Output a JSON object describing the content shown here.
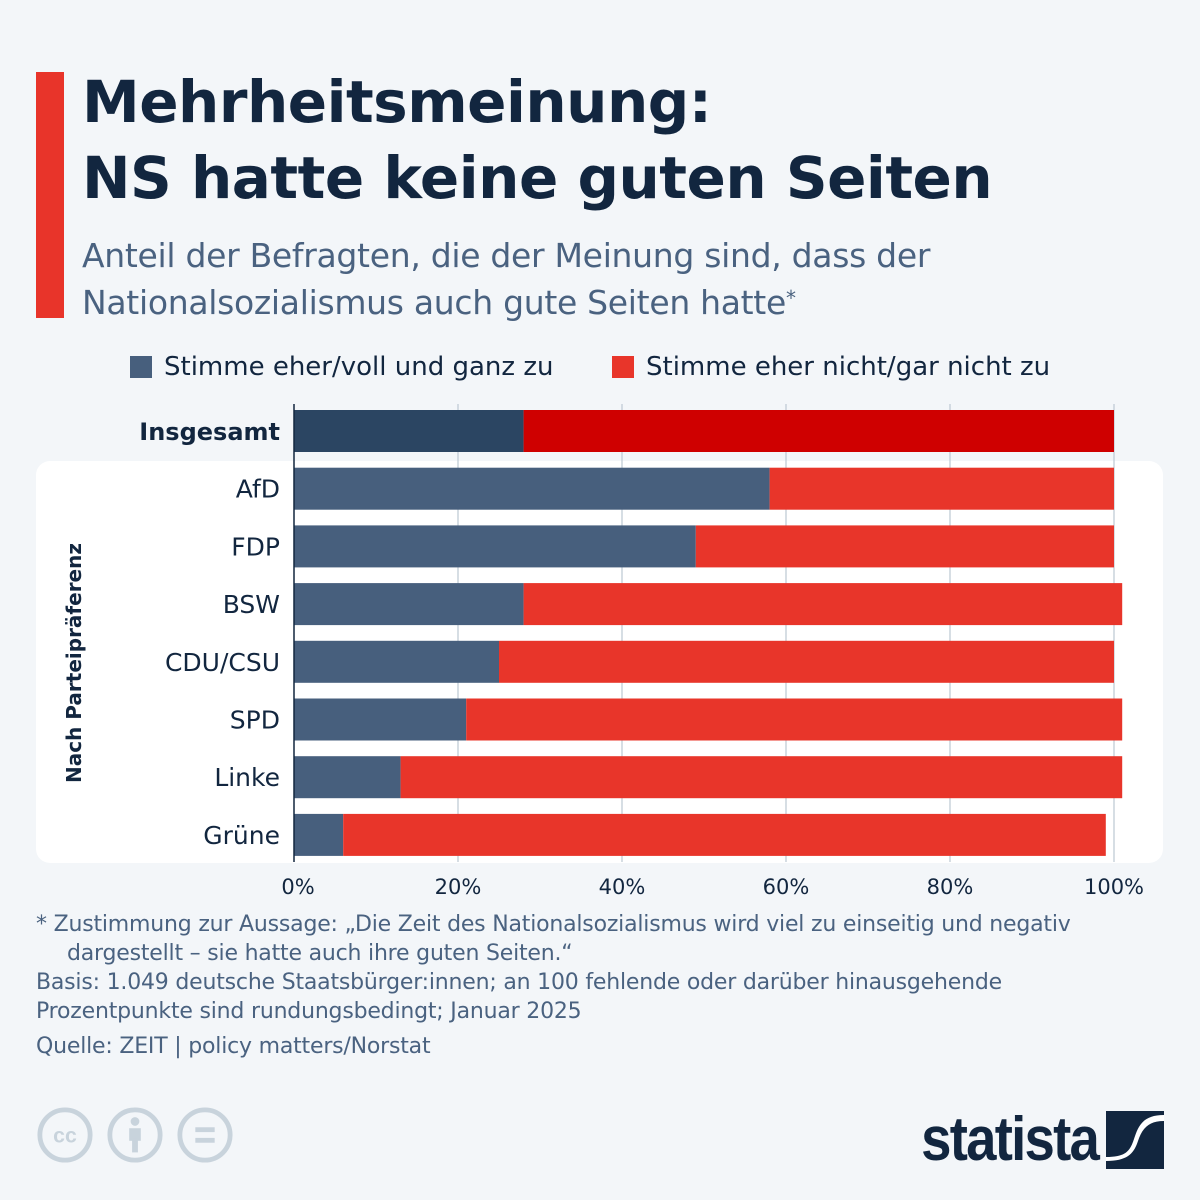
{
  "header": {
    "title_line1": "Mehrheitsmeinung:",
    "title_line2": "NS hatte keine guten Seiten",
    "subtitle_line1": "Anteil der Befragten, die der Meinung sind, dass der",
    "subtitle_line2": "Nationalsozialismus auch gute Seiten hatte",
    "subtitle_marker": "*"
  },
  "colors": {
    "agree": "#475f7d",
    "disagree": "#e8352a",
    "agree_total": "#2b4562",
    "disagree_total": "#cf0000",
    "accent": "#e8342a",
    "text_dark": "#12263f",
    "text_muted": "#4a6280"
  },
  "chart_data": {
    "type": "bar",
    "orientation": "horizontal",
    "stacked": true,
    "title": "Mehrheitsmeinung: NS hatte keine guten Seiten",
    "subtitle": "Anteil der Befragten, die der Meinung sind, dass der Nationalsozialismus auch gute Seiten hatte*",
    "xlabel": "",
    "ylabel": "Nach Parteipräferenz",
    "xlim": [
      0,
      100
    ],
    "x_ticks": [
      "0%",
      "20%",
      "40%",
      "60%",
      "80%",
      "100%"
    ],
    "x_tick_values": [
      0,
      20,
      40,
      60,
      80,
      100
    ],
    "grid": true,
    "legend_position": "top",
    "categories": [
      "Insgesamt",
      "AfD",
      "FDP",
      "BSW",
      "CDU/CSU",
      "SPD",
      "Linke",
      "Grüne"
    ],
    "highlighted_category": "Insgesamt",
    "series": [
      {
        "name": "Stimme eher/voll und ganz zu",
        "values": [
          28,
          58,
          49,
          28,
          25,
          21,
          13,
          6
        ]
      },
      {
        "name": "Stimme eher nicht/gar nicht zu",
        "values": [
          72,
          42,
          51,
          73,
          75,
          80,
          88,
          93
        ]
      }
    ]
  },
  "footnotes": {
    "line1": "* Zustimmung zur Aussage: „Die Zeit des Nationalsozialismus wird viel zu einseitig und negativ",
    "line2": "dargestellt – sie hatte auch ihre guten Seiten.“",
    "line3": "Basis: 1.049 deutsche Staatsbürger:innen; an 100 fehlende oder darüber hinausgehende",
    "line4": "Prozentpunkte sind rundungsbedingt; Januar 2025",
    "source": "Quelle: ZEIT | policy matters/Norstat"
  },
  "license_icons": [
    "creative-commons-icon",
    "attribution-icon",
    "no-derivatives-icon"
  ],
  "logo": {
    "text": "statista"
  }
}
